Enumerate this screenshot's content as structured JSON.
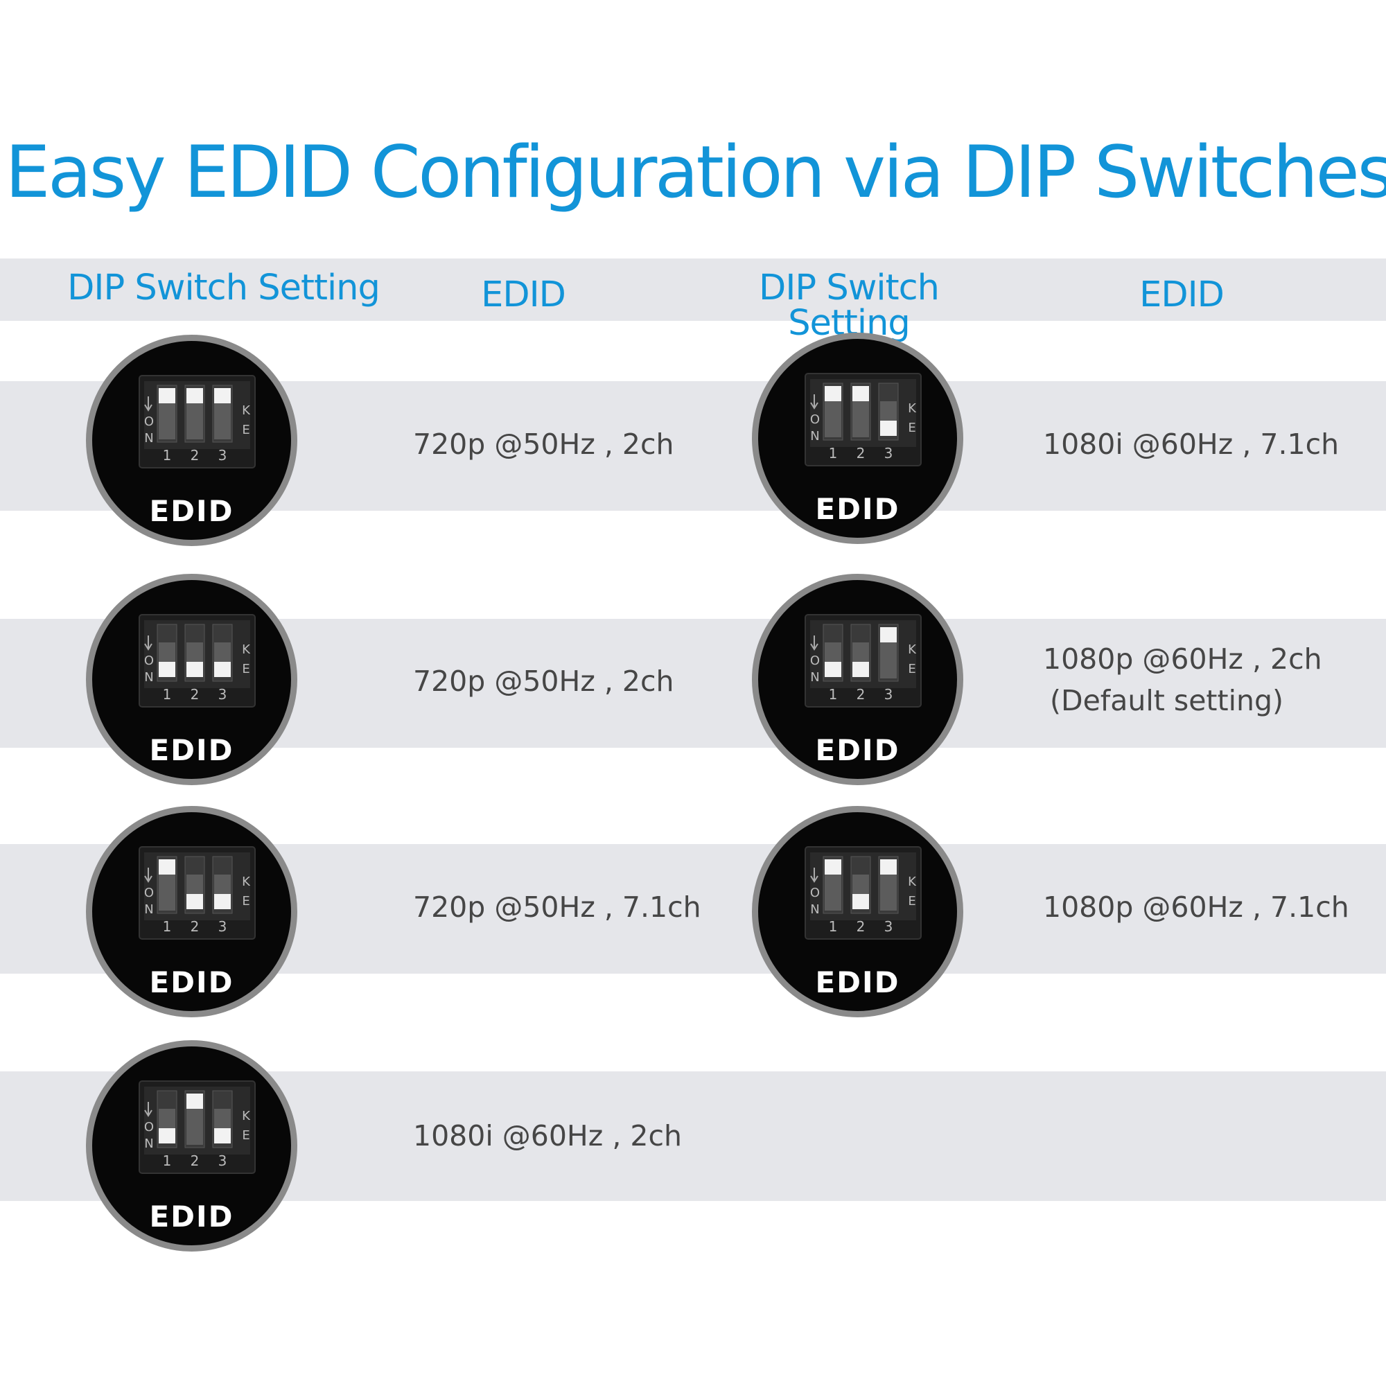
{
  "title": "Easy EDID Configuration via DIP Switches",
  "headers": {
    "left_switch": "DIP Switch Setting",
    "left_edid": "EDID",
    "right_switch": "DIP Switch Setting",
    "right_edid": "EDID"
  },
  "switch_labels": {
    "on": "ON",
    "key": "KE",
    "positions": [
      "1",
      "2",
      "3"
    ],
    "edid": "EDID"
  },
  "settings": [
    {
      "edid": [
        "720p @50Hz , 2ch"
      ],
      "switch_states": [
        "up",
        "up",
        "up"
      ]
    },
    {
      "edid": [
        "720p @50Hz , 2ch"
      ],
      "switch_states": [
        "down",
        "down",
        "down"
      ]
    },
    {
      "edid": [
        "720p @50Hz , 7.1ch"
      ],
      "switch_states": [
        "up",
        "down",
        "down"
      ]
    },
    {
      "edid": [
        "1080i @60Hz , 2ch"
      ],
      "switch_states": [
        "down",
        "up",
        "down"
      ]
    },
    {
      "edid": [
        "1080i @60Hz , 7.1ch"
      ],
      "switch_states": [
        "up",
        "up",
        "down"
      ]
    },
    {
      "edid": [
        "1080p @60Hz , 2ch",
        "(Default setting)"
      ],
      "switch_states": [
        "down",
        "down",
        "up"
      ]
    },
    {
      "edid": [
        "1080p @60Hz , 7.1ch"
      ],
      "switch_states": [
        "up",
        "down",
        "up"
      ]
    }
  ],
  "colors": {
    "accent": "#1294d8",
    "band": "#e5e6ea",
    "text": "#464646",
    "switch_body": "#070707",
    "switch_ring": "#8a8a8a"
  }
}
